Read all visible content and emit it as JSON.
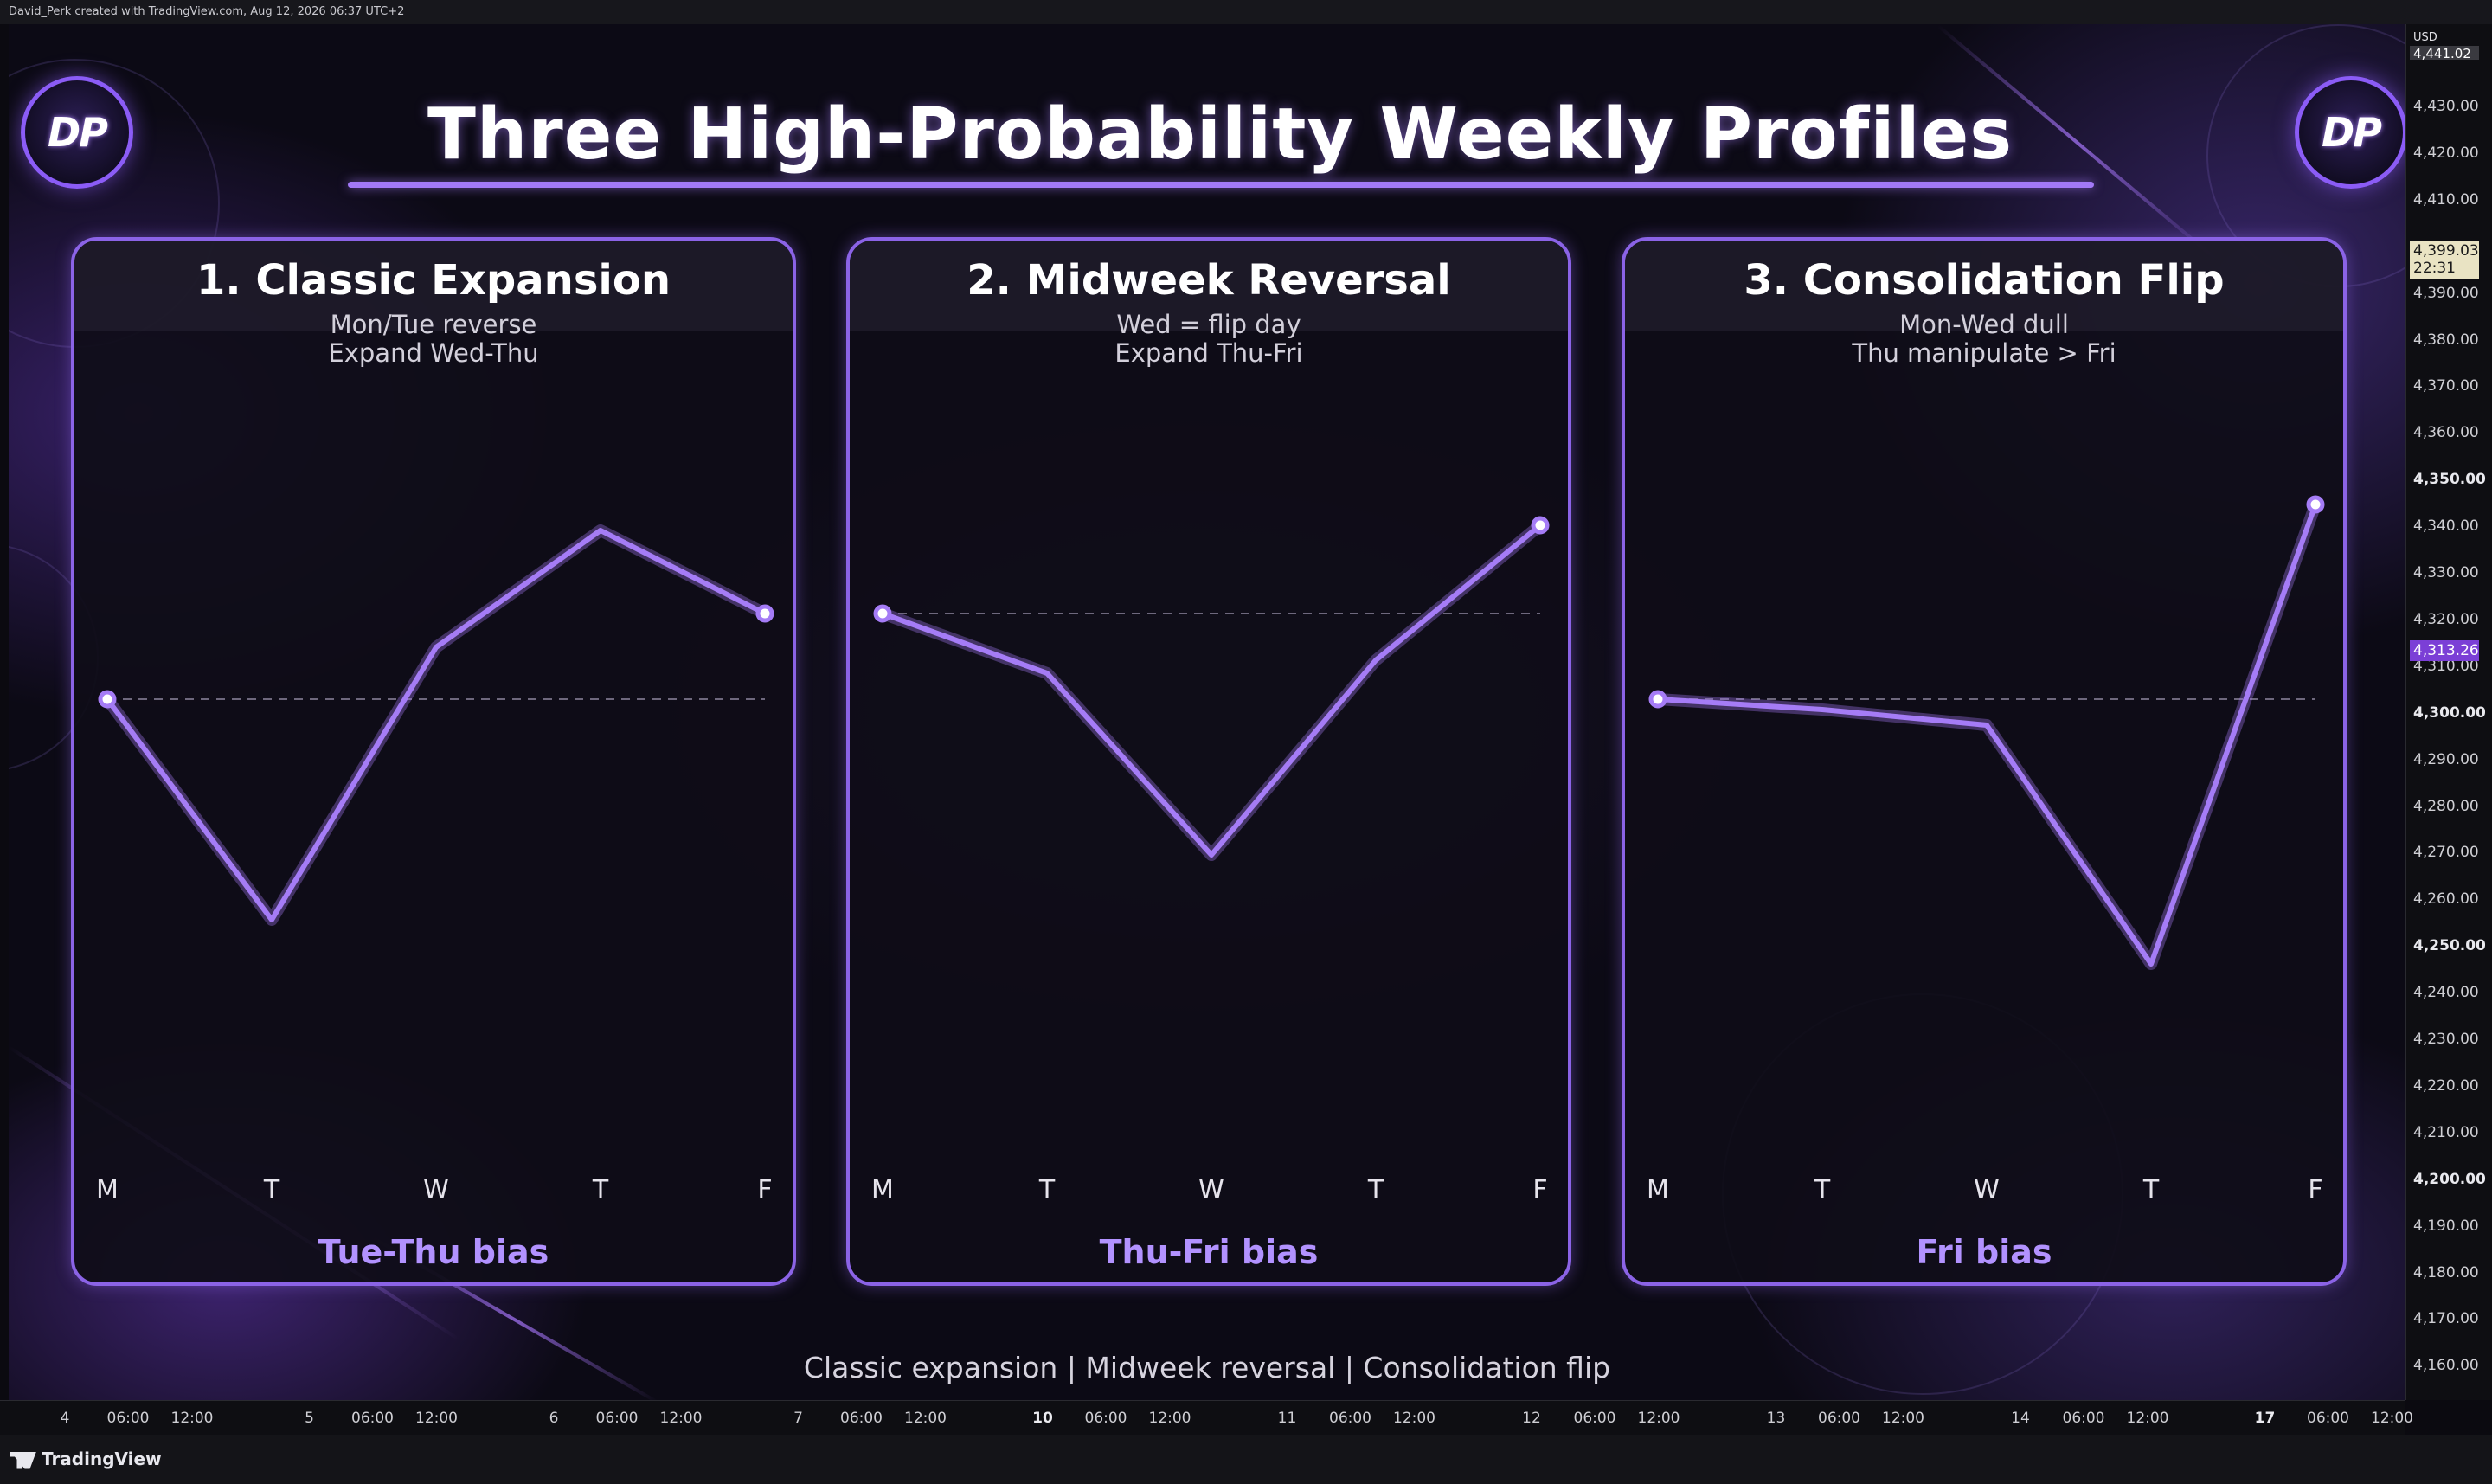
{
  "header": {
    "attribution": "David_Perk created with TradingView.com, Aug 12, 2026 06:37 UTC+2"
  },
  "title": "Three High-Probability Weekly Profiles",
  "logo_text": "DP",
  "panels": [
    {
      "title": "1. Classic Expansion",
      "sub1": "Mon/Tue reverse",
      "sub2": "Expand Wed-Thu",
      "bias": "Tue-Thu bias",
      "days": [
        "M",
        "T",
        "W",
        "T",
        "F"
      ],
      "profile": [
        0.3,
        -0.55,
        0.5,
        0.95,
        0.63
      ],
      "baseline": 0.3
    },
    {
      "title": "2. Midweek Reversal",
      "sub1": "Wed = flip day",
      "sub2": "Expand Thu-Fri",
      "bias": "Thu-Fri bias",
      "days": [
        "M",
        "T",
        "W",
        "T",
        "F"
      ],
      "profile": [
        0.63,
        0.4,
        -0.3,
        0.45,
        0.97
      ],
      "baseline": 0.63
    },
    {
      "title": "3. Consolidation Flip",
      "sub1": "Mon-Wed dull",
      "sub2": "Thu manipulate > Fri",
      "bias": "Fri bias",
      "days": [
        "M",
        "T",
        "W",
        "T",
        "F"
      ],
      "profile": [
        0.3,
        0.26,
        0.2,
        -0.72,
        1.05
      ],
      "baseline": 0.3
    }
  ],
  "footer": "Classic expansion  |  Midweek reversal  |  Consolidation flip",
  "price_axis": {
    "currency": "USD",
    "labels": [
      "4,430.00",
      "4,420.00",
      "4,410.00",
      "4,390.00",
      "4,380.00",
      "4,370.00",
      "4,360.00",
      "4,350.00",
      "4,340.00",
      "4,330.00",
      "4,320.00",
      "4,310.00",
      "4,300.00",
      "4,290.00",
      "4,280.00",
      "4,270.00",
      "4,260.00",
      "4,250.00",
      "4,240.00",
      "4,230.00",
      "4,220.00",
      "4,210.00",
      "4,200.00",
      "4,190.00",
      "4,180.00",
      "4,170.00",
      "4,160.00"
    ],
    "bold_labels": [
      "4,350.00",
      "4,300.00",
      "4,250.00",
      "4,200.00"
    ],
    "top_tag": "4,441.02",
    "current_price": "4,399.03",
    "countdown": "22:31",
    "marker_price": "4,313.26",
    "current_price_color": "#e9e3c3",
    "marker_color": "#7b3fd6"
  },
  "time_axis": [
    "4",
    "06:00",
    "12:00",
    "5",
    "06:00",
    "12:00",
    "6",
    "06:00",
    "12:00",
    "7",
    "06:00",
    "12:00",
    "10",
    "06:00",
    "12:00",
    "11",
    "06:00",
    "12:00",
    "12",
    "06:00",
    "12:00",
    "13",
    "06:00",
    "12:00",
    "14",
    "06:00",
    "12:00",
    "17",
    "06:00",
    "12:00"
  ],
  "time_axis_bold": [
    "10",
    "17"
  ],
  "branding": "TradingView",
  "colors": {
    "accent": "#8b63e6",
    "line": "#a57cf6",
    "bias_text": "#b292ff"
  }
}
